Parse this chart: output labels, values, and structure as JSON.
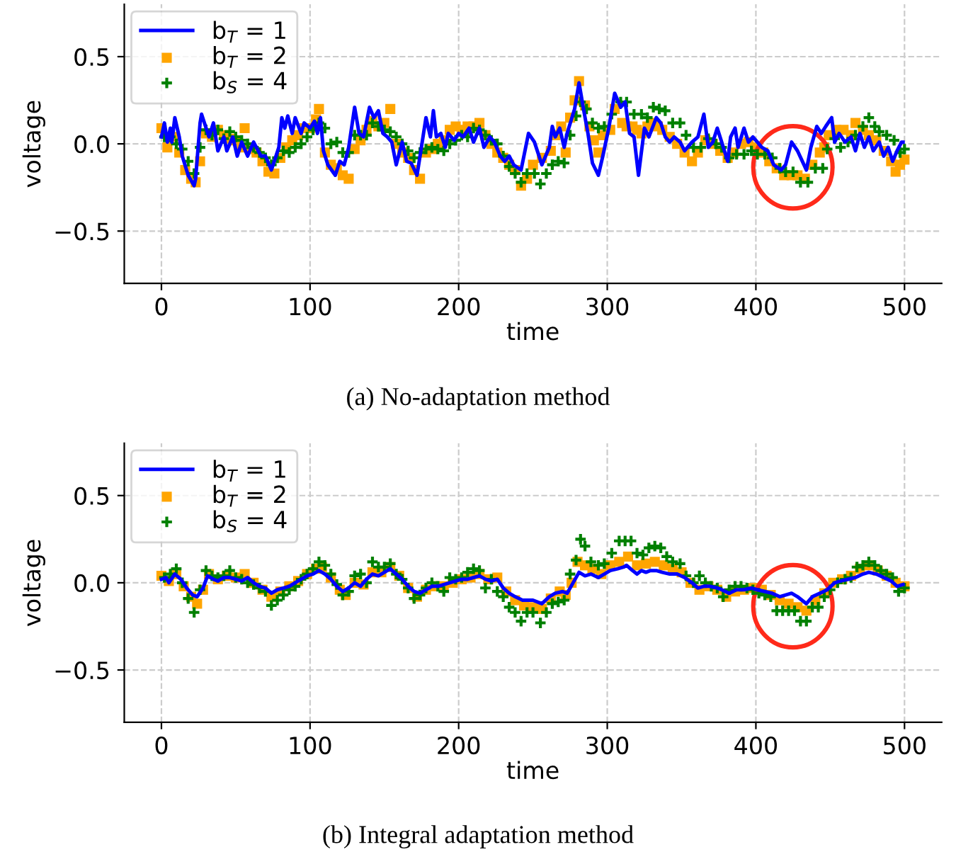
{
  "chart_data": [
    {
      "type": "line",
      "xlabel": "time",
      "ylabel": "voltage",
      "annotations": [
        "(a) No-adaptation method"
      ],
      "xlim": [
        -25,
        525
      ],
      "ylim": [
        -0.8,
        0.8
      ],
      "xticks": [
        0,
        100,
        200,
        300,
        400,
        500
      ],
      "yticks": [
        {
          "value": -0.5,
          "label": "−0.5"
        },
        {
          "value": 0,
          "label": "0.0"
        },
        {
          "value": 0.5,
          "label": "0.5"
        }
      ],
      "grid": true,
      "legend": "top left",
      "series": [
        {
          "name": "b$_{T}$ = 1",
          "type": "line",
          "color": "#0000ff",
          "marker": "none",
          "x": [
            0,
            2,
            4,
            6,
            7,
            9,
            12,
            14,
            18,
            22,
            23,
            26,
            27,
            32,
            35,
            38,
            42,
            44,
            48,
            51,
            54,
            58,
            62,
            67,
            70,
            74,
            79,
            81,
            83,
            85,
            88,
            90,
            94,
            96,
            100,
            103,
            105,
            107,
            109,
            112,
            117,
            120,
            123,
            126,
            130,
            133,
            136,
            140,
            143,
            146,
            149,
            152,
            155,
            158,
            162,
            165,
            168,
            172,
            176,
            178,
            181,
            183,
            185,
            188,
            191,
            193,
            197,
            200,
            203,
            207,
            210,
            214,
            217,
            221,
            224,
            228,
            231,
            234,
            237,
            242,
            247,
            251,
            256,
            261,
            263,
            265,
            268,
            271,
            273,
            278,
            281,
            284,
            287,
            290,
            294,
            297,
            301,
            305,
            309,
            312,
            315,
            318,
            321,
            325,
            328,
            333,
            336,
            339,
            342,
            345,
            349,
            352,
            357,
            361,
            365,
            368,
            371,
            374,
            377,
            381,
            383,
            386,
            388,
            392,
            395,
            398,
            401,
            404,
            408,
            412,
            417,
            420,
            424,
            428,
            434,
            437,
            441,
            444,
            447,
            451,
            453,
            456,
            460,
            464,
            467,
            470,
            473,
            476,
            479,
            483,
            486,
            489,
            492,
            495,
            498,
            499
          ],
          "values": [
            0.04,
            0.12,
            0.01,
            0.09,
            0.01,
            0.15,
            0.04,
            -0.07,
            -0.18,
            -0.24,
            -0.2,
            0.12,
            0.17,
            0.04,
            0.12,
            -0.04,
            0.04,
            -0.04,
            0.04,
            -0.07,
            0.01,
            -0.07,
            0.01,
            -0.07,
            -0.07,
            -0.15,
            -0.02,
            0.15,
            0.09,
            0.16,
            0.06,
            0.15,
            0.06,
            0.12,
            0.09,
            0.13,
            0.06,
            0.15,
            -0.04,
            -0.12,
            -0.18,
            -0.1,
            -0.12,
            -0.02,
            0.21,
            0.06,
            0.04,
            0.21,
            0.15,
            0.19,
            0.06,
            0.04,
            0.01,
            -0.12,
            0.01,
            -0.1,
            -0.11,
            -0.18,
            0.04,
            0.15,
            0.04,
            0.19,
            0.04,
            0.06,
            -0.02,
            0.06,
            0.02,
            0.06,
            0.04,
            0.09,
            0.01,
            0.09,
            -0.02,
            0.04,
            0.01,
            -0.07,
            -0.1,
            -0.07,
            -0.12,
            -0.15,
            0.06,
            0.01,
            -0.12,
            -0.02,
            0.1,
            0.04,
            0.09,
            -0.02,
            0.06,
            0.2,
            0.35,
            0.2,
            0.06,
            -0.11,
            -0.18,
            -0.07,
            0.09,
            0.29,
            0.21,
            0.24,
            0.06,
            0.04,
            -0.18,
            0.09,
            0.04,
            0.15,
            0.12,
            0.04,
            0.01,
            0.04,
            0.01,
            -0.04,
            0.01,
            0.04,
            0.17,
            -0.02,
            0.01,
            0.09,
            0.01,
            -0.1,
            0.04,
            0.09,
            -0.02,
            0.09,
            0.01,
            0.04,
            0.01,
            -0.02,
            -0.04,
            -0.12,
            -0.15,
            -0.12,
            0.01,
            -0.04,
            -0.15,
            -0.02,
            0.1,
            0.06,
            0.1,
            0.15,
            0.01,
            0.06,
            0.01,
            0.04,
            -0.04,
            0.06,
            -0.02,
            0.04,
            -0.04,
            0.01,
            -0.07,
            -0.02,
            -0.1,
            -0.04,
            0.01,
            0.01
          ]
        },
        {
          "name": "b$_{T}$ = 2",
          "type": "scatter",
          "color": "#ffa500",
          "marker": "square",
          "x": [
            0,
            4,
            8,
            12,
            16,
            20,
            23,
            26,
            30,
            34,
            38,
            42,
            46,
            50,
            54,
            56,
            60,
            64,
            68,
            72,
            76,
            80,
            84,
            88,
            92,
            96,
            100,
            104,
            106,
            110,
            114,
            118,
            122,
            126,
            130,
            134,
            138,
            142,
            146,
            150,
            154,
            158,
            162,
            166,
            170,
            174,
            178,
            182,
            186,
            190,
            194,
            198,
            202,
            206,
            210,
            214,
            218,
            222,
            226,
            230,
            234,
            238,
            242,
            246,
            250,
            256,
            262,
            265,
            269,
            272,
            275,
            278,
            281,
            285,
            288,
            291,
            294,
            297,
            302,
            305,
            310,
            313,
            317,
            320,
            323,
            327,
            331,
            334,
            337,
            342,
            347,
            352,
            357,
            361,
            366,
            371,
            376,
            381,
            385,
            390,
            395,
            400,
            405,
            409,
            414,
            419,
            424,
            428,
            433,
            438,
            443,
            446,
            449,
            454,
            459,
            464,
            467,
            472,
            476,
            481,
            486,
            491,
            494,
            497,
            500
          ],
          "values": [
            0.09,
            -0.02,
            0.04,
            -0.05,
            -0.15,
            -0.2,
            -0.22,
            -0.1,
            0.06,
            0.04,
            0.08,
            0.05,
            0.03,
            0.02,
            -0.02,
            0.09,
            -0.03,
            -0.05,
            -0.1,
            -0.16,
            -0.17,
            -0.08,
            -0.02,
            0.02,
            0.05,
            0.09,
            0.09,
            0.14,
            0.2,
            -0.05,
            -0.12,
            -0.14,
            -0.18,
            -0.2,
            -0.03,
            0.02,
            0.08,
            0.13,
            0.1,
            0.12,
            0.2,
            0.0,
            -0.05,
            -0.08,
            -0.15,
            -0.2,
            -0.05,
            -0.03,
            0.0,
            0.02,
            0.08,
            0.1,
            0.08,
            0.1,
            0.1,
            0.12,
            0.05,
            0.0,
            -0.05,
            -0.08,
            -0.12,
            -0.15,
            -0.24,
            -0.2,
            -0.12,
            -0.08,
            -0.04,
            0.05,
            0.1,
            -0.05,
            0.15,
            0.25,
            0.36,
            0.22,
            0.1,
            0.02,
            -0.05,
            0.05,
            0.08,
            0.2,
            0.12,
            0.1,
            0.1,
            0.08,
            0.06,
            0.1,
            0.12,
            0.1,
            0.08,
            0.04,
            0.0,
            -0.05,
            -0.1,
            -0.05,
            0.02,
            0.0,
            -0.04,
            -0.08,
            -0.05,
            0.0,
            0.01,
            -0.02,
            -0.05,
            -0.1,
            -0.14,
            -0.18,
            -0.18,
            -0.18,
            -0.2,
            -0.12,
            -0.05,
            -0.02,
            0.05,
            0.08,
            0.08,
            0.05,
            0.12,
            0.08,
            0.05,
            0.02,
            -0.04,
            -0.1,
            -0.16,
            -0.12,
            -0.09
          ]
        },
        {
          "name": "b$_{S}$ = 4",
          "type": "scatter",
          "color": "#008000",
          "marker": "cross",
          "x": [
            2,
            6,
            10,
            14,
            18,
            22,
            26,
            30,
            34,
            38,
            42,
            46,
            50,
            54,
            58,
            62,
            66,
            70,
            74,
            78,
            82,
            86,
            90,
            94,
            98,
            102,
            106,
            110,
            114,
            118,
            122,
            126,
            130,
            134,
            138,
            142,
            146,
            150,
            154,
            158,
            162,
            166,
            170,
            174,
            178,
            182,
            186,
            190,
            194,
            198,
            202,
            206,
            210,
            214,
            218,
            222,
            226,
            230,
            234,
            238,
            242,
            246,
            251,
            255,
            259,
            263,
            267,
            271,
            275,
            279,
            282,
            286,
            290,
            294,
            298,
            303,
            309,
            313,
            318,
            323,
            327,
            331,
            335,
            339,
            344,
            349,
            353,
            358,
            363,
            368,
            373,
            377,
            382,
            387,
            392,
            397,
            401,
            406,
            411,
            416,
            420,
            425,
            430,
            435,
            440,
            445,
            448,
            453,
            457,
            462,
            467,
            472,
            476,
            480,
            483,
            488,
            493,
            497,
            500
          ],
          "values": [
            0.04,
            0.04,
            0.0,
            -0.03,
            -0.1,
            -0.17,
            -0.02,
            0.08,
            0.05,
            0.08,
            0.03,
            0.07,
            0.04,
            0.02,
            0.0,
            -0.02,
            -0.05,
            -0.08,
            -0.12,
            -0.08,
            -0.04,
            -0.05,
            -0.02,
            0.0,
            0.04,
            0.08,
            0.12,
            0.09,
            0.0,
            0.01,
            -0.05,
            -0.05,
            0.05,
            0.05,
            0.05,
            0.12,
            0.1,
            0.08,
            0.07,
            0.04,
            0.0,
            -0.04,
            -0.08,
            -0.05,
            -0.03,
            -0.02,
            -0.03,
            -0.04,
            0.0,
            0.02,
            0.05,
            0.04,
            0.09,
            0.08,
            0.05,
            0.02,
            0.0,
            -0.07,
            -0.13,
            -0.17,
            -0.22,
            -0.17,
            -0.17,
            -0.23,
            -0.17,
            -0.12,
            -0.1,
            -0.11,
            0.05,
            0.16,
            0.24,
            0.2,
            0.12,
            0.09,
            0.1,
            0.17,
            0.24,
            0.24,
            0.17,
            0.17,
            0.15,
            0.21,
            0.2,
            0.19,
            0.12,
            0.12,
            0.05,
            -0.02,
            -0.02,
            0.03,
            0.0,
            -0.02,
            -0.08,
            -0.06,
            -0.06,
            -0.04,
            -0.06,
            -0.06,
            -0.08,
            -0.14,
            -0.16,
            -0.16,
            -0.22,
            -0.22,
            -0.14,
            -0.14,
            -0.03,
            0.03,
            -0.02,
            0.01,
            0.05,
            0.1,
            0.15,
            0.1,
            0.07,
            0.05,
            0.02,
            -0.05,
            -0.03
          ]
        }
      ]
    },
    {
      "type": "line",
      "xlabel": "time",
      "ylabel": "voltage",
      "annotations": [
        "(b) Integral adaptation method"
      ],
      "xlim": [
        -25,
        525
      ],
      "ylim": [
        -0.8,
        0.8
      ],
      "xticks": [
        0,
        100,
        200,
        300,
        400,
        500
      ],
      "yticks": [
        {
          "value": -0.5,
          "label": "−0.5"
        },
        {
          "value": 0,
          "label": "0.0"
        },
        {
          "value": 0.5,
          "label": "0.5"
        }
      ],
      "grid": true,
      "legend": "top left",
      "series": [
        {
          "name": "b$_{T}$ = 1",
          "type": "line",
          "color": "#0000ff",
          "marker": "none",
          "x": [
            0,
            3,
            5,
            9,
            13,
            17,
            21,
            24,
            28,
            31,
            35,
            38,
            42,
            46,
            50,
            54,
            58,
            62,
            66,
            70,
            74,
            78,
            82,
            86,
            90,
            94,
            98,
            102,
            106,
            110,
            114,
            118,
            122,
            126,
            130,
            134,
            138,
            142,
            146,
            150,
            154,
            158,
            162,
            166,
            170,
            174,
            178,
            182,
            186,
            190,
            194,
            198,
            202,
            206,
            210,
            214,
            218,
            222,
            226,
            230,
            234,
            238,
            243,
            250,
            256,
            261,
            265,
            270,
            273,
            277,
            281,
            285,
            289,
            294,
            298,
            302,
            307,
            311,
            313,
            317,
            320,
            323,
            326,
            329,
            333,
            337,
            342,
            347,
            352,
            357,
            361,
            365,
            369,
            374,
            377,
            382,
            387,
            392,
            397,
            401,
            406,
            411,
            416,
            420,
            424,
            428,
            434,
            438,
            443,
            448,
            453,
            457,
            462,
            467,
            472,
            476,
            481,
            486,
            491,
            495,
            499
          ],
          "values": [
            0.02,
            0.03,
            0.0,
            0.05,
            0.02,
            -0.03,
            -0.07,
            -0.08,
            -0.03,
            0.04,
            0.02,
            0.01,
            0.03,
            0.03,
            0.02,
            0.01,
            0.03,
            0.0,
            -0.02,
            -0.03,
            -0.06,
            -0.04,
            -0.03,
            -0.02,
            0.0,
            0.02,
            0.04,
            0.05,
            0.07,
            0.05,
            0.02,
            -0.02,
            -0.05,
            -0.03,
            0.0,
            -0.02,
            0.02,
            0.05,
            0.04,
            0.06,
            0.08,
            0.05,
            0.02,
            -0.02,
            -0.05,
            -0.06,
            -0.04,
            -0.02,
            -0.02,
            -0.01,
            0.0,
            0.01,
            0.02,
            0.02,
            0.03,
            0.04,
            0.02,
            0.01,
            0.02,
            -0.03,
            -0.06,
            -0.08,
            -0.1,
            -0.1,
            -0.12,
            -0.08,
            -0.06,
            -0.05,
            -0.06,
            0.0,
            0.06,
            0.04,
            0.05,
            0.03,
            0.05,
            0.07,
            0.08,
            0.09,
            0.1,
            0.07,
            0.05,
            0.07,
            0.06,
            0.07,
            0.07,
            0.06,
            0.05,
            0.05,
            0.03,
            0.0,
            -0.03,
            -0.02,
            -0.02,
            -0.03,
            -0.04,
            -0.06,
            -0.04,
            -0.04,
            -0.03,
            -0.04,
            -0.05,
            -0.06,
            -0.08,
            -0.07,
            -0.06,
            -0.08,
            -0.12,
            -0.08,
            -0.06,
            -0.04,
            0.0,
            0.01,
            0.02,
            0.03,
            0.05,
            0.06,
            0.05,
            0.03,
            0.01,
            -0.02,
            -0.01
          ]
        },
        {
          "name": "b$_{T}$ = 2",
          "type": "scatter",
          "color": "#ffa500",
          "marker": "square",
          "x": [
            0,
            5,
            10,
            15,
            20,
            24,
            28,
            32,
            38,
            44,
            50,
            56,
            62,
            68,
            74,
            80,
            86,
            92,
            98,
            104,
            108,
            114,
            120,
            124,
            130,
            136,
            142,
            148,
            154,
            160,
            166,
            172,
            178,
            184,
            190,
            196,
            202,
            208,
            214,
            220,
            226,
            232,
            238,
            244,
            250,
            256,
            262,
            268,
            272,
            276,
            280,
            285,
            290,
            296,
            302,
            308,
            314,
            320,
            326,
            332,
            338,
            344,
            350,
            356,
            362,
            368,
            374,
            380,
            386,
            392,
            398,
            404,
            410,
            416,
            422,
            428,
            434,
            440,
            446,
            452,
            458,
            464,
            470,
            476,
            482,
            488,
            494,
            500
          ],
          "values": [
            0.04,
            0.01,
            0.05,
            -0.02,
            -0.08,
            -0.12,
            -0.04,
            0.05,
            0.02,
            0.04,
            0.03,
            0.05,
            0.0,
            -0.04,
            -0.08,
            -0.05,
            -0.02,
            0.01,
            0.05,
            0.08,
            0.09,
            0.03,
            -0.04,
            -0.07,
            0.0,
            -0.01,
            0.06,
            0.06,
            0.09,
            0.04,
            -0.03,
            -0.08,
            -0.04,
            -0.02,
            -0.02,
            0.0,
            0.02,
            0.03,
            0.05,
            0.02,
            0.03,
            -0.05,
            -0.1,
            -0.13,
            -0.14,
            -0.15,
            -0.09,
            -0.05,
            -0.07,
            0.0,
            0.12,
            0.1,
            0.08,
            0.05,
            0.1,
            0.12,
            0.15,
            0.1,
            0.11,
            0.12,
            0.1,
            0.08,
            0.06,
            0.0,
            -0.04,
            -0.02,
            -0.04,
            -0.08,
            -0.05,
            -0.04,
            -0.03,
            -0.04,
            -0.07,
            -0.1,
            -0.12,
            -0.14,
            -0.16,
            -0.1,
            -0.06,
            0.0,
            0.02,
            0.04,
            0.08,
            0.1,
            0.07,
            0.04,
            0.0,
            -0.02
          ]
        },
        {
          "name": "b$_{S}$ = 4",
          "type": "scatter",
          "color": "#008000",
          "marker": "cross",
          "x": [
            2,
            6,
            10,
            14,
            18,
            22,
            26,
            30,
            34,
            38,
            42,
            46,
            50,
            54,
            58,
            62,
            66,
            70,
            74,
            78,
            82,
            86,
            90,
            94,
            98,
            102,
            106,
            110,
            114,
            118,
            122,
            126,
            130,
            134,
            138,
            142,
            146,
            150,
            154,
            158,
            162,
            166,
            170,
            174,
            178,
            182,
            186,
            190,
            194,
            198,
            202,
            206,
            210,
            214,
            218,
            222,
            226,
            230,
            234,
            238,
            242,
            246,
            250,
            255,
            259,
            263,
            267,
            271,
            275,
            279,
            282,
            285,
            289,
            294,
            298,
            303,
            308,
            312,
            316,
            320,
            324,
            328,
            332,
            336,
            340,
            344,
            349,
            353,
            358,
            362,
            366,
            370,
            374,
            378,
            382,
            386,
            390,
            394,
            398,
            402,
            406,
            410,
            414,
            418,
            422,
            426,
            430,
            434,
            438,
            442,
            446,
            450,
            455,
            460,
            464,
            468,
            472,
            476,
            480,
            484,
            488,
            492,
            496,
            500
          ],
          "values": [
            0.03,
            0.05,
            0.08,
            0.0,
            -0.09,
            -0.17,
            -0.04,
            0.07,
            0.04,
            0.03,
            0.04,
            0.07,
            0.03,
            0.02,
            0.0,
            -0.01,
            -0.03,
            -0.05,
            -0.13,
            -0.1,
            -0.07,
            -0.04,
            -0.02,
            0.02,
            0.05,
            0.08,
            0.12,
            0.1,
            0.05,
            -0.01,
            -0.07,
            -0.05,
            0.04,
            0.05,
            0.0,
            0.12,
            0.09,
            0.09,
            0.11,
            0.05,
            0.02,
            -0.03,
            -0.09,
            -0.07,
            -0.03,
            0.0,
            -0.02,
            -0.05,
            0.03,
            0.02,
            0.03,
            0.06,
            0.08,
            0.07,
            -0.03,
            0.02,
            -0.05,
            -0.08,
            -0.14,
            -0.17,
            -0.22,
            -0.17,
            -0.17,
            -0.23,
            -0.17,
            -0.12,
            -0.11,
            -0.1,
            0.05,
            0.13,
            0.25,
            0.21,
            0.12,
            0.1,
            0.11,
            0.17,
            0.24,
            0.24,
            0.24,
            0.17,
            0.16,
            0.2,
            0.21,
            0.2,
            0.15,
            0.12,
            0.11,
            0.04,
            0.0,
            0.04,
            0.0,
            -0.02,
            -0.03,
            -0.08,
            -0.04,
            -0.02,
            -0.02,
            -0.03,
            -0.04,
            -0.06,
            -0.07,
            -0.08,
            -0.16,
            -0.16,
            -0.16,
            -0.16,
            -0.22,
            -0.22,
            -0.14,
            -0.14,
            -0.08,
            -0.04,
            0.0,
            0.02,
            0.03,
            0.09,
            0.1,
            0.12,
            0.1,
            0.07,
            0.05,
            0.03,
            -0.05,
            -0.03
          ]
        }
      ]
    }
  ]
}
